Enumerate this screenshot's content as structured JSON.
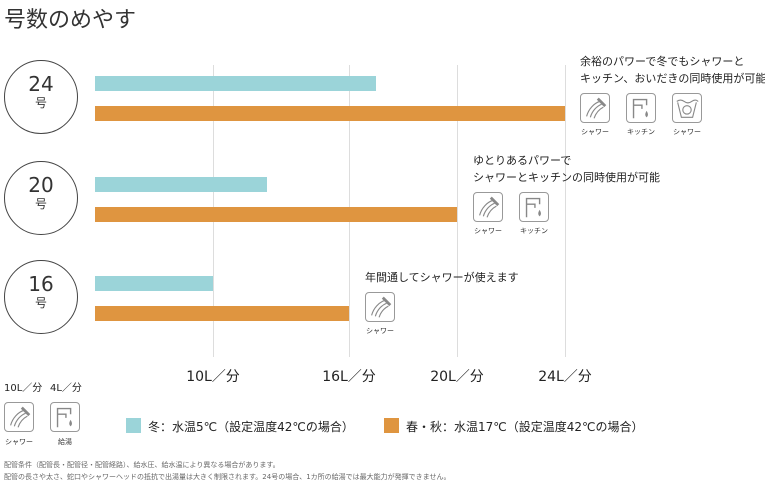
{
  "title": "号数のめやす",
  "chart_data": {
    "type": "bar",
    "orientation": "horizontal",
    "categories": [
      "24号",
      "20号",
      "16号"
    ],
    "category_numbers": [
      "24",
      "20",
      "16"
    ],
    "category_unit": "号",
    "series": [
      {
        "name": "冬：水温5℃（設定温度42℃の場合）",
        "color": "#9bd4d9",
        "values": [
          17,
          12.4,
          10
        ]
      },
      {
        "name": "春・秋：水温17℃（設定温度42℃の場合）",
        "color": "#df9540",
        "values": [
          24,
          20,
          16
        ]
      }
    ],
    "xticks": [
      10,
      16,
      20,
      24
    ],
    "xtick_labels": [
      "10L／分",
      "16L／分",
      "20L／分",
      "24L／分"
    ],
    "grid": true,
    "legend": "bottom"
  },
  "annotations": [
    {
      "lines": [
        "余裕のパワーで冬でもシャワーと",
        "キッチン、おいだきの同時使用が可能"
      ],
      "icons": [
        {
          "icon": "shower-icon",
          "label": "シャワー"
        },
        {
          "icon": "kitchen-faucet-icon",
          "label": "キッチン"
        },
        {
          "icon": "bath-reheat-icon",
          "label": "シャワー"
        }
      ]
    },
    {
      "lines": [
        "ゆとりあるパワーで",
        "シャワーとキッチンの同時使用が可能"
      ],
      "icons": [
        {
          "icon": "shower-icon",
          "label": "シャワー"
        },
        {
          "icon": "kitchen-faucet-icon",
          "label": "キッチン"
        }
      ]
    },
    {
      "lines": [
        "年間通してシャワーが使えます"
      ],
      "icons": [
        {
          "icon": "shower-icon",
          "label": "シャワー"
        }
      ]
    }
  ],
  "usage": [
    {
      "flow": "10L／分",
      "icon": "shower-icon",
      "label": "シャワー"
    },
    {
      "flow": "4L／分",
      "icon": "kitchen-faucet-icon",
      "label": "給湯"
    }
  ],
  "footnotes": [
    "配管条件（配管長・配管径・配管経路）、給水圧、給水温により異なる場合があります。",
    "配管の長さや太さ、蛇口やシャワーヘッドの抵抗で出湯量は大きく制限されます。24号の場合、1カ所の給湯では最大能力が発揮できません。"
  ]
}
